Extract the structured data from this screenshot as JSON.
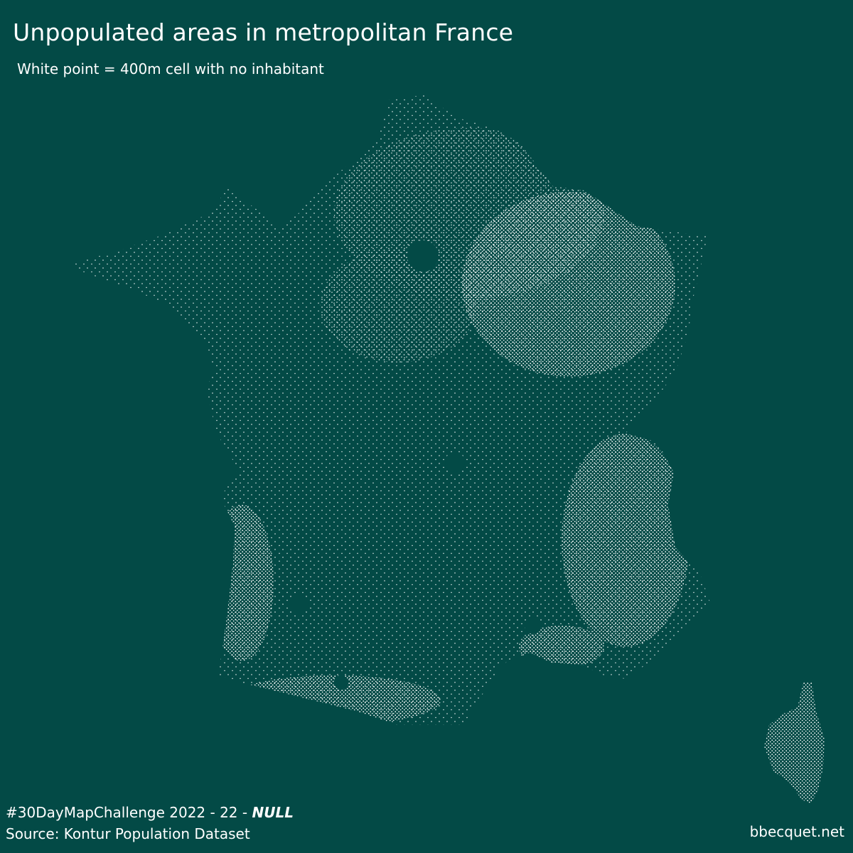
{
  "title": "Unpopulated areas in metropolitan France",
  "subtitle": "White point = 400m cell with no inhabitant",
  "map": {
    "background_color": "#034a46",
    "point_color": "#ffffff",
    "regions": [
      "mainland-france",
      "corsica"
    ]
  },
  "footer": {
    "challenge_prefix": "#30DayMapChallenge 2022 - 22 - ",
    "challenge_theme": "NULL",
    "source": "Source: Kontur Population Dataset",
    "credit": "bbecquet.net"
  }
}
